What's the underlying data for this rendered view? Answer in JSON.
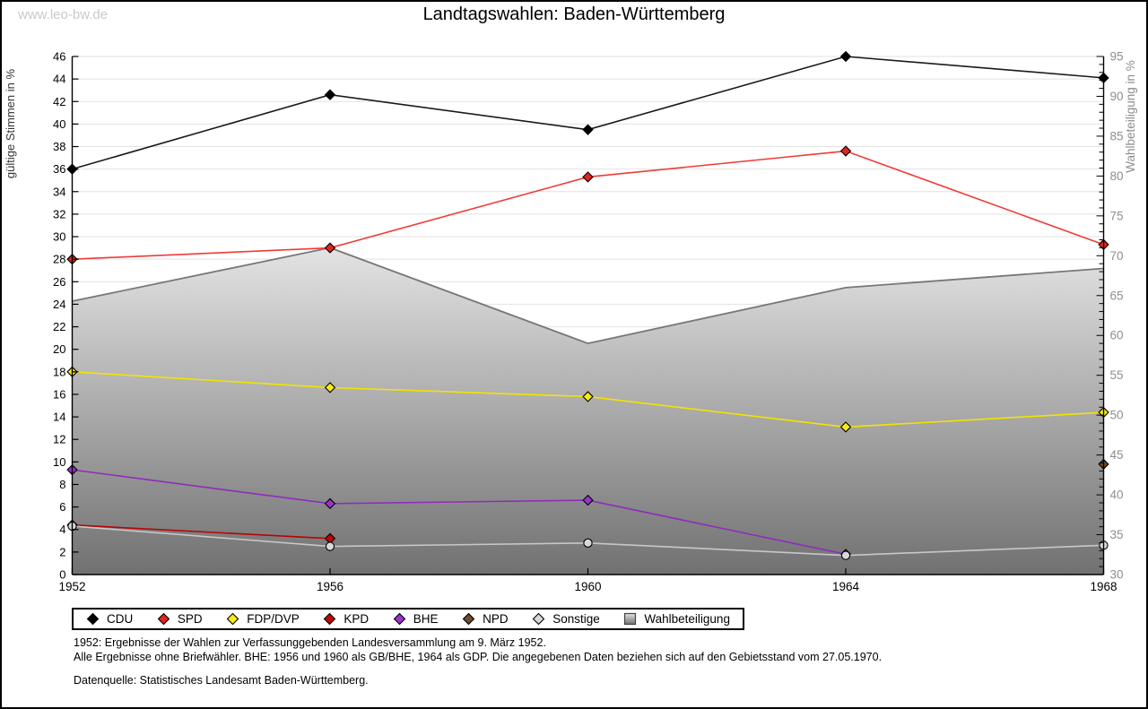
{
  "page": {
    "watermark": "www.leo-bw.de"
  },
  "chart_data": {
    "type": "line",
    "title": "Landtagswahlen: Baden-Württemberg",
    "x": [
      1952,
      1956,
      1960,
      1964,
      1968
    ],
    "x_labels": [
      "1952",
      "1956",
      "1960",
      "1964",
      "1968"
    ],
    "left_axis": {
      "label": "gültige Stimmen in %",
      "min": 0,
      "max": 46,
      "tick_step": 2,
      "tick_color": "#000000",
      "label_color": "#333333"
    },
    "right_axis": {
      "label": "Wahlbeteiligung in %",
      "min": 30,
      "max": 95,
      "tick_step": 5,
      "minor_step": 1,
      "tick_color": "#8e8e8e",
      "label_color": "#8e8e8e"
    },
    "grid": true,
    "grid_color": "#e2e2e2",
    "legend_position": "bottom",
    "series": [
      {
        "name": "CDU",
        "color": "#000000",
        "line_color": "#1a1a1a",
        "marker": "diamond",
        "values": [
          36.0,
          42.6,
          39.5,
          46.0,
          44.1
        ]
      },
      {
        "name": "SPD",
        "color": "#e0251f",
        "line_color": "#ef3b36",
        "marker": "diamond",
        "values": [
          28.0,
          29.0,
          35.3,
          37.6,
          29.3
        ]
      },
      {
        "name": "FDP/DVP",
        "color": "#f7ec13",
        "line_color": "#f2e400",
        "marker": "diamond",
        "values": [
          18.0,
          16.6,
          15.8,
          13.1,
          14.4
        ]
      },
      {
        "name": "KPD",
        "color": "#c00505",
        "line_color": "#b80404",
        "marker": "diamond",
        "values": [
          4.4,
          3.2,
          null,
          null,
          null
        ]
      },
      {
        "name": "BHE",
        "color": "#9b34cb",
        "line_color": "#8f2cbd",
        "marker": "diamond",
        "values": [
          9.3,
          6.3,
          6.6,
          1.8,
          null
        ]
      },
      {
        "name": "NPD",
        "color": "#6d4a2e",
        "line_color": "#6d4a2e",
        "marker": "diamond",
        "values": [
          null,
          null,
          null,
          null,
          9.8
        ]
      },
      {
        "name": "Sonstige",
        "color": "#d8d8d8",
        "line_color": "#c8c8c8",
        "marker": "circle",
        "values": [
          4.3,
          2.5,
          2.8,
          1.7,
          2.6
        ]
      }
    ],
    "area_series": {
      "name": "Wahlbeteiligung",
      "axis": "right",
      "values": [
        64.3,
        71.0,
        59.0,
        66.0,
        68.4
      ],
      "stroke": "#787878",
      "fill_top": "#e3e3e3",
      "fill_bottom": "#717171"
    }
  },
  "notes": {
    "line1": "1952: Ergebnisse der Wahlen zur Verfassunggebenden Landesversammlung am 9. März 1952.",
    "line2": "Alle Ergebnisse ohne Briefwähler. BHE: 1956 und 1960 als GB/BHE, 1964 als GDP. Die angegebenen Daten beziehen sich auf den Gebietsstand vom 27.05.1970.",
    "source": "Datenquelle: Statistisches Landesamt Baden-Württemberg."
  }
}
